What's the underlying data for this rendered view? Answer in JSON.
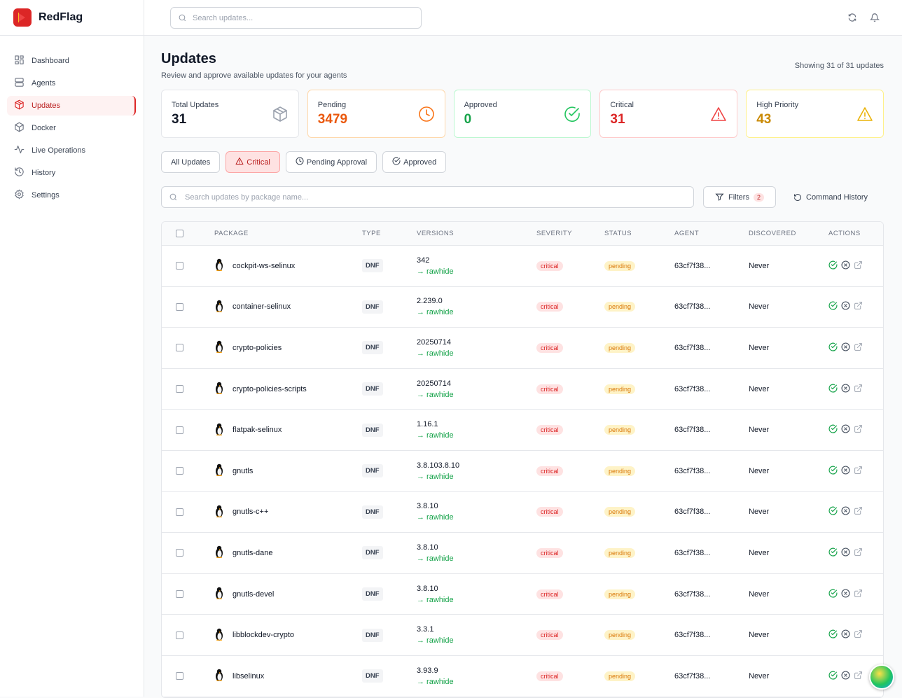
{
  "brand": {
    "name": "RedFlag"
  },
  "sidebar": {
    "items": [
      {
        "label": "Dashboard",
        "icon": "grid-icon"
      },
      {
        "label": "Agents",
        "icon": "server-icon"
      },
      {
        "label": "Updates",
        "icon": "package-icon",
        "active": true
      },
      {
        "label": "Docker",
        "icon": "box-icon"
      },
      {
        "label": "Live Operations",
        "icon": "activity-icon"
      },
      {
        "label": "History",
        "icon": "history-icon"
      },
      {
        "label": "Settings",
        "icon": "gear-icon"
      }
    ]
  },
  "topbar": {
    "search_placeholder": "Search updates..."
  },
  "page": {
    "title": "Updates",
    "subtitle": "Review and approve available updates for your agents",
    "showing": "Showing 31 of 31 updates"
  },
  "cards": [
    {
      "label": "Total Updates",
      "value": "31",
      "color": "#111827"
    },
    {
      "label": "Pending",
      "value": "3479",
      "color": "#ea580c"
    },
    {
      "label": "Approved",
      "value": "0",
      "color": "#16a34a"
    },
    {
      "label": "Critical",
      "value": "31",
      "color": "#dc2626"
    },
    {
      "label": "High Priority",
      "value": "43",
      "color": "#ca8a04"
    }
  ],
  "tabs": [
    {
      "label": "All Updates"
    },
    {
      "label": "Critical",
      "active": true
    },
    {
      "label": "Pending Approval"
    },
    {
      "label": "Approved"
    }
  ],
  "search": {
    "placeholder": "Search updates by package name..."
  },
  "filters": {
    "label": "Filters",
    "count": "2"
  },
  "command_history": "Command History",
  "table": {
    "headers": [
      "PACKAGE",
      "TYPE",
      "VERSIONS",
      "SEVERITY",
      "STATUS",
      "AGENT",
      "DISCOVERED",
      "ACTIONS"
    ],
    "rows": [
      {
        "package": "cockpit-ws-selinux",
        "type": "DNF",
        "current": "342",
        "available": "→ rawhide",
        "severity": "critical",
        "status": "pending",
        "agent": "63cf7f38...",
        "discovered": "Never"
      },
      {
        "package": "container-selinux",
        "type": "DNF",
        "current": "2.239.0",
        "available": "→ rawhide",
        "severity": "critical",
        "status": "pending",
        "agent": "63cf7f38...",
        "discovered": "Never"
      },
      {
        "package": "crypto-policies",
        "type": "DNF",
        "current": "20250714",
        "available": "→ rawhide",
        "severity": "critical",
        "status": "pending",
        "agent": "63cf7f38...",
        "discovered": "Never"
      },
      {
        "package": "crypto-policies-scripts",
        "type": "DNF",
        "current": "20250714",
        "available": "→ rawhide",
        "severity": "critical",
        "status": "pending",
        "agent": "63cf7f38...",
        "discovered": "Never"
      },
      {
        "package": "flatpak-selinux",
        "type": "DNF",
        "current": "1.16.1",
        "available": "→ rawhide",
        "severity": "critical",
        "status": "pending",
        "agent": "63cf7f38...",
        "discovered": "Never"
      },
      {
        "package": "gnutls",
        "type": "DNF",
        "current": "3.8.103.8.10",
        "available": "→ rawhide",
        "severity": "critical",
        "status": "pending",
        "agent": "63cf7f38...",
        "discovered": "Never"
      },
      {
        "package": "gnutls-c++",
        "type": "DNF",
        "current": "3.8.10",
        "available": "→ rawhide",
        "severity": "critical",
        "status": "pending",
        "agent": "63cf7f38...",
        "discovered": "Never"
      },
      {
        "package": "gnutls-dane",
        "type": "DNF",
        "current": "3.8.10",
        "available": "→ rawhide",
        "severity": "critical",
        "status": "pending",
        "agent": "63cf7f38...",
        "discovered": "Never"
      },
      {
        "package": "gnutls-devel",
        "type": "DNF",
        "current": "3.8.10",
        "available": "→ rawhide",
        "severity": "critical",
        "status": "pending",
        "agent": "63cf7f38...",
        "discovered": "Never"
      },
      {
        "package": "libblockdev-crypto",
        "type": "DNF",
        "current": "3.3.1",
        "available": "→ rawhide",
        "severity": "critical",
        "status": "pending",
        "agent": "63cf7f38...",
        "discovered": "Never"
      },
      {
        "package": "libselinux",
        "type": "DNF",
        "current": "3.93.9",
        "available": "→ rawhide",
        "severity": "critical",
        "status": "pending",
        "agent": "63cf7f38...",
        "discovered": "Never"
      }
    ]
  }
}
